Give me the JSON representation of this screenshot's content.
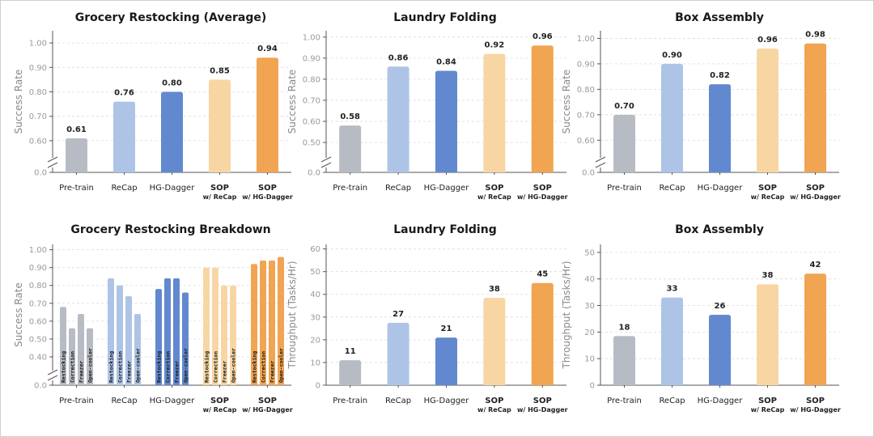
{
  "colors": {
    "pretrain": "#b7bcc4",
    "recap": "#aec4e6",
    "hgdagger": "#6289cf",
    "sop_recap": "#f8d6a4",
    "sop_hgdagger": "#f1a452"
  },
  "chart_data": [
    {
      "id": "c1",
      "type": "bar",
      "title": "Grocery Restocking (Average)",
      "ylabel": "Success Rate",
      "xlabel": "",
      "ylim": [
        0.55,
        1.05
      ],
      "axis_break": true,
      "yticks": [
        "0.0",
        "0.60",
        "0.70",
        "0.80",
        "0.90",
        "1.00"
      ],
      "grid": true,
      "categories": [
        "Pre-train",
        "ReCap",
        "HG-Dagger",
        "SOP w/ ReCap",
        "SOP w/ HG-Dagger"
      ],
      "values": [
        0.61,
        0.76,
        0.8,
        0.85,
        0.94
      ],
      "value_labels": [
        "0.61",
        "0.76",
        "0.80",
        "0.85",
        "0.94"
      ]
    },
    {
      "id": "c2",
      "type": "bar",
      "title": "Laundry Folding",
      "ylabel": "Success Rate",
      "xlabel": "",
      "ylim": [
        0.45,
        1.03
      ],
      "axis_break": true,
      "yticks": [
        "0.0",
        "0.50",
        "0.60",
        "0.70",
        "0.80",
        "0.90",
        "1.00"
      ],
      "grid": true,
      "categories": [
        "Pre-train",
        "ReCap",
        "HG-Dagger",
        "SOP w/ ReCap",
        "SOP w/ HG-Dagger"
      ],
      "values": [
        0.58,
        0.86,
        0.84,
        0.92,
        0.96
      ],
      "value_labels": [
        "0.58",
        "0.86",
        "0.84",
        "0.92",
        "0.96"
      ]
    },
    {
      "id": "c3",
      "type": "bar",
      "title": "Box Assembly",
      "ylabel": "Success Rate",
      "xlabel": "",
      "ylim": [
        0.55,
        1.03
      ],
      "axis_break": true,
      "yticks": [
        "0.0",
        "0.60",
        "0.70",
        "0.80",
        "0.90",
        "1.00"
      ],
      "grid": true,
      "categories": [
        "Pre-train",
        "ReCap",
        "HG-Dagger",
        "SOP w/ ReCap",
        "SOP w/ HG-Dagger"
      ],
      "values": [
        0.7,
        0.9,
        0.82,
        0.96,
        0.98
      ],
      "value_labels": [
        "0.70",
        "0.90",
        "0.82",
        "0.96",
        "0.98"
      ]
    },
    {
      "id": "c4",
      "type": "bar",
      "title": "Grocery Restocking Breakdown",
      "ylabel": "Success Rate",
      "xlabel": "",
      "ylim": [
        0.35,
        1.03
      ],
      "axis_break": true,
      "yticks": [
        "0.0",
        "0.40",
        "0.50",
        "0.60",
        "0.70",
        "0.80",
        "0.90",
        "1.00"
      ],
      "grid": true,
      "categories": [
        "Pre-train",
        "ReCap",
        "HG-Dagger",
        "SOP w/ ReCap",
        "SOP w/ HG-Dagger"
      ],
      "subcategories": [
        "Restocking",
        "Correction",
        "Freezer",
        "Open-cooler"
      ],
      "grouped_values": [
        [
          0.68,
          0.56,
          0.64,
          0.56
        ],
        [
          0.84,
          0.8,
          0.74,
          0.64
        ],
        [
          0.78,
          0.84,
          0.84,
          0.76
        ],
        [
          0.9,
          0.9,
          0.8,
          0.8
        ],
        [
          0.92,
          0.94,
          0.94,
          0.96
        ]
      ]
    },
    {
      "id": "c5",
      "type": "bar",
      "title": "Laundry Folding",
      "ylabel": "Throughput (Tasks/Hr)",
      "xlabel": "",
      "ylim": [
        0,
        62
      ],
      "axis_break": false,
      "yticks": [
        "0",
        "10",
        "20",
        "30",
        "40",
        "50",
        "60"
      ],
      "grid": true,
      "categories": [
        "Pre-train",
        "ReCap",
        "HG-Dagger",
        "SOP w/ ReCap",
        "SOP w/ HG-Dagger"
      ],
      "values": [
        11,
        27.5,
        21,
        38.5,
        45
      ],
      "value_labels": [
        "11",
        "27",
        "21",
        "38",
        "45"
      ]
    },
    {
      "id": "c6",
      "type": "bar",
      "title": "Box Assembly",
      "ylabel": "Throughput (Tasks/Hr)",
      "xlabel": "",
      "ylim": [
        0,
        53
      ],
      "axis_break": false,
      "yticks": [
        "0",
        "10",
        "20",
        "30",
        "40",
        "50"
      ],
      "grid": true,
      "categories": [
        "Pre-train",
        "ReCap",
        "HG-Dagger",
        "SOP w/ ReCap",
        "SOP w/ HG-Dagger"
      ],
      "values": [
        18.5,
        33,
        26.5,
        38,
        42
      ],
      "value_labels": [
        "18",
        "33",
        "26",
        "38",
        "42"
      ]
    }
  ]
}
